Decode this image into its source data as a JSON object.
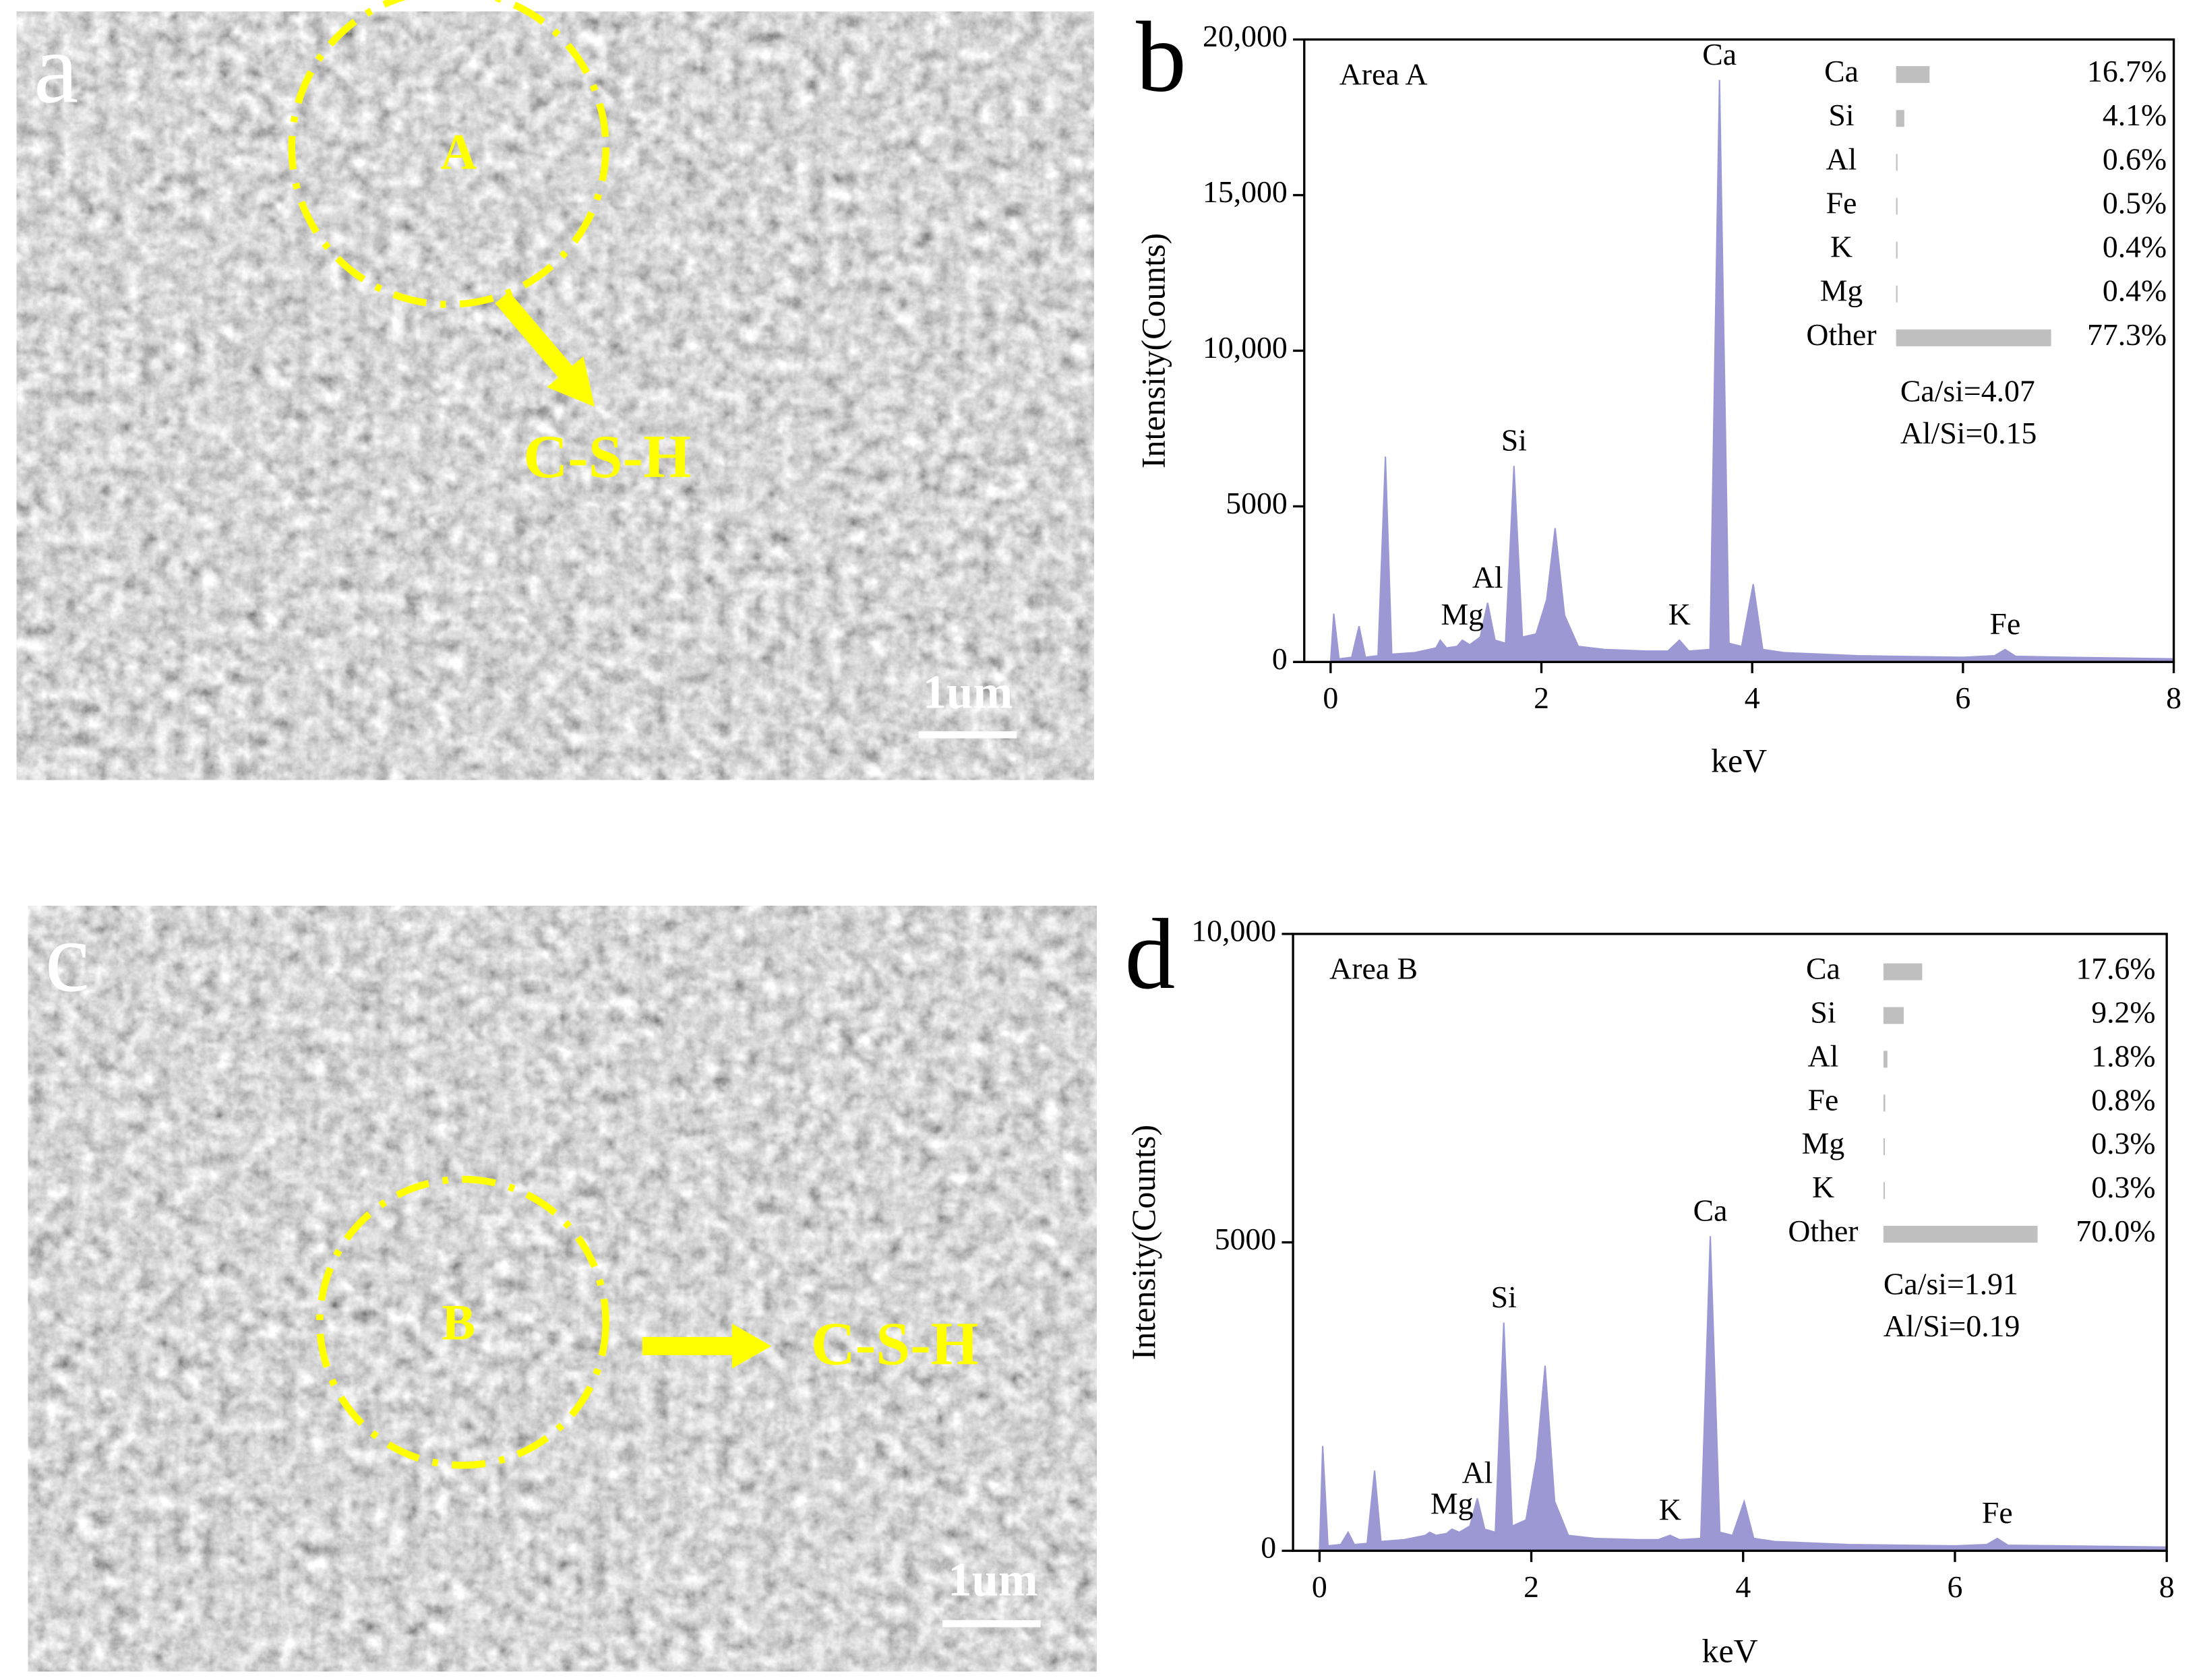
{
  "images": [
    {
      "panel": "a",
      "region": "A",
      "label": "C-S-H",
      "scale_bar": "1um"
    },
    {
      "panel": "c",
      "region": "B",
      "label": "C-S-H",
      "scale_bar": "1um"
    }
  ],
  "chart_data": [
    {
      "type": "area",
      "panel": "b",
      "title": "Area A",
      "xlabel": "keV",
      "ylabel": "Intensity(Counts)",
      "color": "#9b98d4",
      "x": [
        0,
        0.03,
        0.08,
        0.2,
        0.27,
        0.33,
        0.45,
        0.52,
        0.58,
        0.8,
        1.0,
        1.04,
        1.1,
        1.2,
        1.25,
        1.32,
        1.42,
        1.49,
        1.56,
        1.66,
        1.74,
        1.82,
        1.95,
        2.05,
        2.13,
        2.22,
        2.35,
        2.6,
        3.0,
        3.2,
        3.31,
        3.4,
        3.6,
        3.69,
        3.78,
        3.9,
        4.01,
        4.1,
        4.3,
        5.0,
        6.0,
        6.3,
        6.4,
        6.5,
        7.0,
        8.0
      ],
      "values": [
        0,
        1550,
        100,
        150,
        1150,
        150,
        200,
        6600,
        250,
        300,
        450,
        700,
        450,
        500,
        700,
        550,
        800,
        1900,
        700,
        600,
        6300,
        800,
        900,
        2000,
        4300,
        1500,
        500,
        400,
        350,
        350,
        700,
        350,
        400,
        18700,
        600,
        500,
        2500,
        400,
        300,
        200,
        150,
        200,
        400,
        180,
        150,
        100
      ],
      "xlim": [
        -0.25,
        8
      ],
      "xticks": [
        0,
        2,
        4,
        6,
        8
      ],
      "ylim": [
        0,
        20000
      ],
      "yticks": [
        0,
        5000,
        {
          "value": 10000,
          "label": "10,000"
        },
        {
          "value": 15000,
          "label": "15,000"
        },
        {
          "value": 20000,
          "label": "20,000"
        }
      ],
      "annotations": [
        {
          "text": "Mg",
          "x": 1.25
        },
        {
          "text": "Al",
          "x": 1.49
        },
        {
          "text": "Si",
          "x": 1.74
        },
        {
          "text": "K",
          "x": 3.31
        },
        {
          "text": "Ca",
          "x": 3.69
        },
        {
          "text": "Fe",
          "x": 6.4
        }
      ],
      "composition": {
        "color": "#bfbfbf",
        "categories": [
          "Ca",
          "Si",
          "Al",
          "Fe",
          "K",
          "Mg",
          "Other"
        ],
        "values": [
          16.7,
          4.1,
          0.6,
          0.5,
          0.4,
          0.4,
          77.3
        ],
        "value_labels": [
          "16.7%",
          "4.1%",
          "0.6%",
          "0.5%",
          "0.4%",
          "0.4%",
          "77.3%"
        ]
      },
      "ratios": [
        "Ca/si=4.07",
        "Al/Si=0.15"
      ]
    },
    {
      "type": "area",
      "panel": "d",
      "title": "Area B",
      "xlabel": "keV",
      "ylabel": "Intensity(Counts)",
      "color": "#9b98d4",
      "x": [
        0,
        0.03,
        0.08,
        0.2,
        0.27,
        0.33,
        0.45,
        0.52,
        0.58,
        0.8,
        1.0,
        1.04,
        1.1,
        1.2,
        1.25,
        1.32,
        1.42,
        1.49,
        1.56,
        1.66,
        1.74,
        1.82,
        1.95,
        2.05,
        2.13,
        2.22,
        2.35,
        2.6,
        3.0,
        3.2,
        3.31,
        3.4,
        3.6,
        3.69,
        3.78,
        3.9,
        4.01,
        4.1,
        4.3,
        5.0,
        6.0,
        6.3,
        6.4,
        6.5,
        7.0,
        8.0
      ],
      "values": [
        0,
        1700,
        80,
        100,
        300,
        100,
        120,
        1300,
        150,
        180,
        250,
        300,
        250,
        280,
        350,
        300,
        400,
        850,
        350,
        300,
        3700,
        400,
        500,
        1500,
        3000,
        800,
        250,
        200,
        180,
        180,
        250,
        180,
        200,
        5100,
        300,
        250,
        800,
        200,
        150,
        100,
        80,
        100,
        200,
        90,
        80,
        60
      ],
      "xlim": [
        -0.25,
        8
      ],
      "xticks": [
        0,
        2,
        4,
        6,
        8
      ],
      "ylim": [
        0,
        10000
      ],
      "yticks": [
        0,
        5000,
        {
          "value": 10000,
          "label": "10,000"
        }
      ],
      "annotations": [
        {
          "text": "Mg",
          "x": 1.25
        },
        {
          "text": "Al",
          "x": 1.49
        },
        {
          "text": "Si",
          "x": 1.74
        },
        {
          "text": "K",
          "x": 3.31
        },
        {
          "text": "Ca",
          "x": 3.69
        },
        {
          "text": "Fe",
          "x": 6.4
        }
      ],
      "composition": {
        "color": "#bfbfbf",
        "categories": [
          "Ca",
          "Si",
          "Al",
          "Fe",
          "Mg",
          "K",
          "Other"
        ],
        "values": [
          17.6,
          9.2,
          1.8,
          0.8,
          0.3,
          0.3,
          70.0
        ],
        "value_labels": [
          "17.6%",
          "9.2%",
          "1.8%",
          "0.8%",
          "0.3%",
          "0.3%",
          "70.0%"
        ]
      },
      "ratios": [
        "Ca/si=1.91",
        "Al/Si=0.19"
      ]
    }
  ]
}
